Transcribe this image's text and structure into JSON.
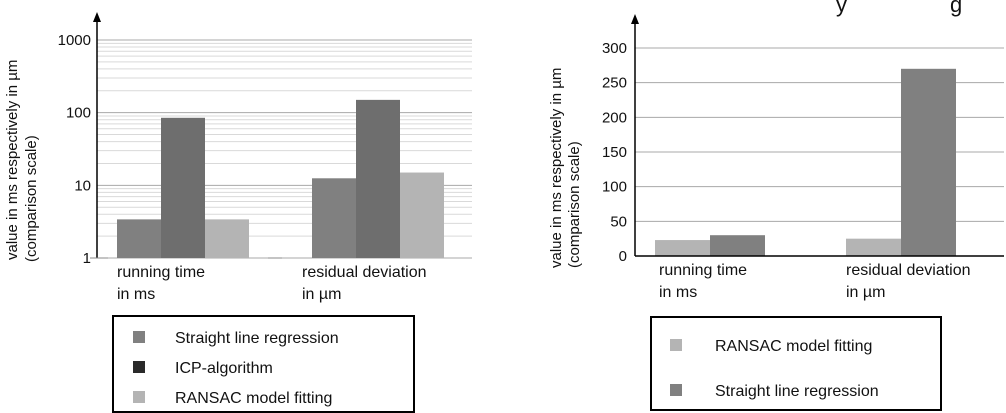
{
  "chart_data": [
    {
      "type": "bar",
      "title": "",
      "scale": "log",
      "ylim": [
        1,
        1000
      ],
      "yticks": [
        "1",
        "10",
        "100",
        "1000"
      ],
      "ylabel": [
        "value in ms respectively in µm",
        "(comparison scale)"
      ],
      "categories": [
        [
          "running time",
          "in ms"
        ],
        [
          "residual deviation",
          "in µm"
        ]
      ],
      "series": [
        {
          "name": "Straight line regression",
          "color": "#808080",
          "values": [
            3.4,
            12.5
          ]
        },
        {
          "name": "ICP-algorithm",
          "color": "#6e6e6e",
          "values": [
            85,
            150
          ]
        },
        {
          "name": "RANSAC model fitting",
          "color": "#b4b4b4",
          "values": [
            3.4,
            15
          ]
        }
      ],
      "legend": {
        "placement": "bottom",
        "entries": [
          {
            "label": "Straight line regression",
            "color": "#808080"
          },
          {
            "label": "ICP-algorithm",
            "color": "#2a2a2a"
          },
          {
            "label": "RANSAC model fitting",
            "color": "#b4b4b4"
          }
        ]
      },
      "grid": true
    },
    {
      "type": "bar",
      "title": "y",
      "title_suffix": "g",
      "scale": "linear",
      "ylim": [
        0,
        300
      ],
      "yticks": [
        "0",
        "50",
        "100",
        "150",
        "200",
        "250",
        "300"
      ],
      "ylabel": [
        "value in ms respectively in µm",
        "(comparison scale)"
      ],
      "categories": [
        [
          "running time",
          "in ms"
        ],
        [
          "residual deviation",
          "in µm"
        ]
      ],
      "series": [
        {
          "name": "RANSAC model fitting",
          "color": "#b4b4b4",
          "values": [
            23,
            25
          ]
        },
        {
          "name": "Straight line regression",
          "color": "#808080",
          "values": [
            30,
            270
          ]
        }
      ],
      "legend": {
        "placement": "bottom",
        "entries": [
          {
            "label": "RANSAC model fitting",
            "color": "#b4b4b4"
          },
          {
            "label": "Straight line regression",
            "color": "#808080"
          }
        ]
      },
      "grid": true
    }
  ]
}
